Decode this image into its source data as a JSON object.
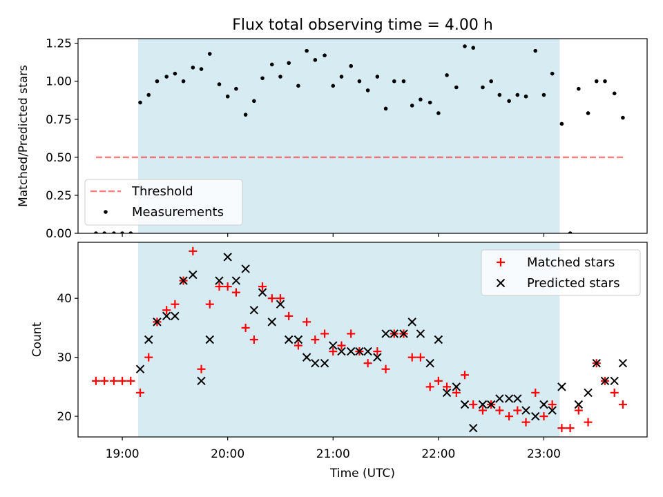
{
  "title": "Flux total observing time = 4.00 h",
  "colors": {
    "shade": "#add8e6",
    "threshold": "#ff0000",
    "measurements": "#000000",
    "matched": "#ff0000",
    "predicted": "#000000"
  },
  "chart_data": [
    {
      "type": "scatter",
      "ylabel": "Matched/Predicted stars",
      "xlim": [
        18.58,
        23.98
      ],
      "ylim": [
        0,
        1.28
      ],
      "yticks": [
        {
          "value": 0,
          "label": "0.00"
        },
        {
          "value": 0.25,
          "label": "0.25"
        },
        {
          "value": 0.5,
          "label": "0.50"
        },
        {
          "value": 0.75,
          "label": "0.75"
        },
        {
          "value": 1.0,
          "label": "1.00"
        },
        {
          "value": 1.25,
          "label": "1.25"
        }
      ],
      "shaded_span": [
        19.15,
        23.15
      ],
      "legend": {
        "placement": "lower-left",
        "labels": [
          "Threshold",
          "Measurements"
        ]
      },
      "threshold": {
        "name": "Threshold",
        "y": 0.5,
        "x": [
          18.75,
          23.75
        ],
        "style": "dashed"
      },
      "series": [
        {
          "name": "Measurements",
          "x": [
            18.75,
            18.83,
            18.92,
            19.0,
            19.08,
            19.17,
            19.25,
            19.33,
            19.42,
            19.5,
            19.58,
            19.67,
            19.75,
            19.83,
            19.92,
            20.0,
            20.08,
            20.17,
            20.25,
            20.33,
            20.42,
            20.5,
            20.58,
            20.67,
            20.75,
            20.83,
            20.92,
            21.0,
            21.08,
            21.17,
            21.25,
            21.33,
            21.42,
            21.5,
            21.58,
            21.67,
            21.75,
            21.83,
            21.92,
            22.0,
            22.08,
            22.17,
            22.25,
            22.33,
            22.42,
            22.5,
            22.58,
            22.67,
            22.75,
            22.83,
            22.92,
            23.0,
            23.08,
            23.17,
            23.25,
            23.33,
            23.42,
            23.5,
            23.58,
            23.67,
            23.75
          ],
          "y": [
            0,
            0,
            0,
            0,
            0,
            0.86,
            0.91,
            1.0,
            1.03,
            1.05,
            1.0,
            1.09,
            1.08,
            1.18,
            0.98,
            0.9,
            0.95,
            0.78,
            0.87,
            1.02,
            1.11,
            1.03,
            1.12,
            0.97,
            1.2,
            1.14,
            1.17,
            0.97,
            1.03,
            1.1,
            1.0,
            0.94,
            1.03,
            0.82,
            1.0,
            1.0,
            0.84,
            0.88,
            0.86,
            0.79,
            1.04,
            0.96,
            1.23,
            1.22,
            0.96,
            1.0,
            0.91,
            0.87,
            0.91,
            0.9,
            1.2,
            0.91,
            1.05,
            0.72,
            0,
            0.95,
            0.79,
            1.0,
            1.0,
            0.92,
            0.76
          ]
        }
      ]
    },
    {
      "type": "scatter",
      "xlabel": "Time (UTC)",
      "ylabel": "Count",
      "xlim": [
        18.58,
        23.98
      ],
      "ylim": [
        16.5,
        49.5
      ],
      "yticks": [
        {
          "value": 20,
          "label": "20"
        },
        {
          "value": 30,
          "label": "30"
        },
        {
          "value": 40,
          "label": "40"
        }
      ],
      "xticks": [
        {
          "value": 19,
          "label": "19:00"
        },
        {
          "value": 20,
          "label": "20:00"
        },
        {
          "value": 21,
          "label": "21:00"
        },
        {
          "value": 22,
          "label": "22:00"
        },
        {
          "value": 23,
          "label": "23:00"
        }
      ],
      "shaded_span": [
        19.15,
        23.15
      ],
      "legend": {
        "placement": "top-right",
        "labels": [
          "Matched stars",
          "Predicted stars"
        ]
      },
      "series": [
        {
          "name": "Matched stars",
          "marker": "+",
          "x": [
            18.75,
            18.83,
            18.92,
            19.0,
            19.08,
            19.17,
            19.25,
            19.33,
            19.42,
            19.5,
            19.58,
            19.67,
            19.75,
            19.83,
            19.92,
            20.0,
            20.08,
            20.17,
            20.25,
            20.33,
            20.42,
            20.5,
            20.58,
            20.67,
            20.75,
            20.83,
            20.92,
            21.0,
            21.08,
            21.17,
            21.25,
            21.33,
            21.42,
            21.5,
            21.58,
            21.67,
            21.75,
            21.83,
            21.92,
            22.0,
            22.08,
            22.17,
            22.25,
            22.33,
            22.42,
            22.5,
            22.58,
            22.67,
            22.75,
            22.83,
            22.92,
            23.0,
            23.08,
            23.17,
            23.25,
            23.33,
            23.42,
            23.5,
            23.58,
            23.67,
            23.75
          ],
          "y": [
            26,
            26,
            26,
            26,
            26,
            24,
            30,
            36,
            38,
            39,
            43,
            48,
            28,
            39,
            42,
            42,
            41,
            35,
            33,
            42,
            40,
            40,
            37,
            32,
            36,
            33,
            34,
            31,
            32,
            34,
            31,
            29,
            31,
            28,
            34,
            34,
            30,
            30,
            25,
            26,
            25,
            24,
            27,
            22,
            21,
            22,
            21,
            20,
            21,
            19,
            24,
            20,
            22,
            18,
            18,
            21,
            19,
            29,
            26,
            24,
            22
          ]
        },
        {
          "name": "Predicted stars",
          "marker": "x",
          "x": [
            19.17,
            19.25,
            19.33,
            19.42,
            19.5,
            19.58,
            19.67,
            19.75,
            19.83,
            19.92,
            20.0,
            20.08,
            20.17,
            20.25,
            20.33,
            20.42,
            20.5,
            20.58,
            20.67,
            20.75,
            20.83,
            20.92,
            21.0,
            21.08,
            21.17,
            21.25,
            21.33,
            21.42,
            21.5,
            21.58,
            21.67,
            21.75,
            21.83,
            21.92,
            22.0,
            22.08,
            22.17,
            22.25,
            22.33,
            22.42,
            22.5,
            22.58,
            22.67,
            22.75,
            22.83,
            22.92,
            23.0,
            23.08,
            23.17,
            23.33,
            23.42,
            23.5,
            23.58,
            23.67,
            23.75
          ],
          "y": [
            28,
            33,
            36,
            37,
            37,
            43,
            44,
            26,
            33,
            43,
            47,
            43,
            45,
            38,
            41,
            36,
            39,
            33,
            33,
            30,
            29,
            29,
            32,
            31,
            31,
            31,
            31,
            30,
            34,
            34,
            34,
            36,
            34,
            29,
            33,
            24,
            25,
            22,
            18,
            22,
            22,
            23,
            23,
            23,
            21,
            20,
            22,
            21,
            25,
            22,
            24,
            29,
            26,
            26,
            29
          ]
        }
      ]
    }
  ]
}
